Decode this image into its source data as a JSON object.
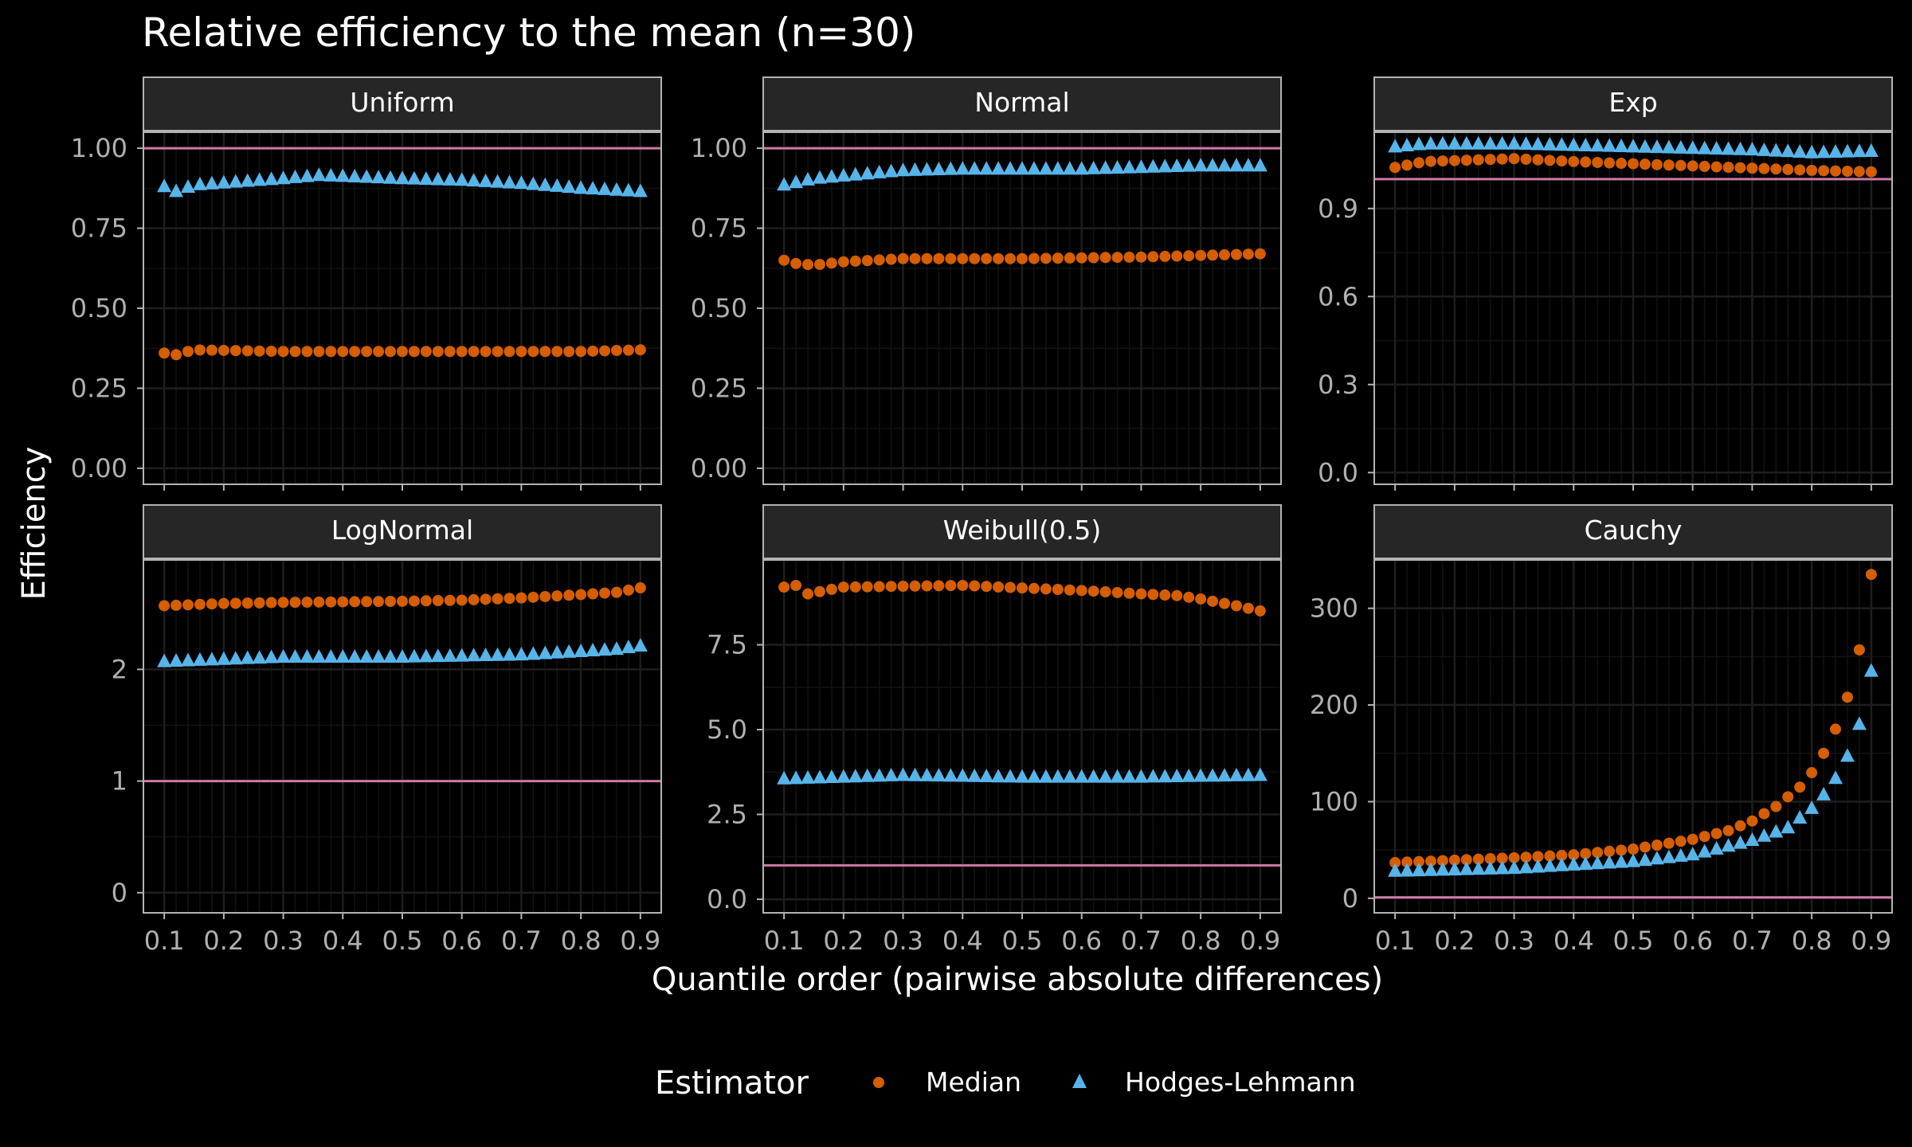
{
  "title": "Relative efficiency to the mean (n=30)",
  "xlabel": "Quantile order (pairwise absolute differences)",
  "ylabel": "Efficiency",
  "legend": {
    "title": "Estimator",
    "placement": "bottom",
    "items": [
      {
        "label": "Median",
        "shape": "circle",
        "color": "#D55E00"
      },
      {
        "label": "Hodges-Lehmann",
        "shape": "triangle",
        "color": "#56B4E9"
      }
    ]
  },
  "colors": {
    "background": "#000000",
    "panel_background": "#000000",
    "strip_background": "#262626",
    "grid": "#1e1e1e",
    "reference_line": "#CC79A7",
    "text": "#ffffff",
    "tick_text": "#b0b0b0"
  },
  "chart_data": {
    "type": "scatter",
    "facets": [
      {
        "name": "Uniform",
        "ylim": [
          -0.05,
          1.05
        ],
        "yticks": [
          0.0,
          0.25,
          0.5,
          0.75,
          1.0
        ],
        "yticklabels": [
          "0.00",
          "0.25",
          "0.50",
          "0.75",
          "1.00"
        ],
        "series": [
          {
            "name": "Median",
            "anchors": [
              [
                0.1,
                0.36
              ],
              [
                0.12,
                0.355
              ],
              [
                0.15,
                0.37
              ],
              [
                0.3,
                0.365
              ],
              [
                0.5,
                0.365
              ],
              [
                0.7,
                0.365
              ],
              [
                0.8,
                0.365
              ],
              [
                0.9,
                0.37
              ]
            ]
          },
          {
            "name": "Hodges-Lehmann",
            "anchors": [
              [
                0.1,
                0.88
              ],
              [
                0.12,
                0.865
              ],
              [
                0.15,
                0.885
              ],
              [
                0.3,
                0.905
              ],
              [
                0.36,
                0.915
              ],
              [
                0.5,
                0.905
              ],
              [
                0.6,
                0.9
              ],
              [
                0.7,
                0.89
              ],
              [
                0.8,
                0.875
              ],
              [
                0.9,
                0.865
              ]
            ]
          }
        ]
      },
      {
        "name": "Normal",
        "ylim": [
          -0.05,
          1.05
        ],
        "yticks": [
          0.0,
          0.25,
          0.5,
          0.75,
          1.0
        ],
        "yticklabels": [
          "0.00",
          "0.25",
          "0.50",
          "0.75",
          "1.00"
        ],
        "series": [
          {
            "name": "Median",
            "anchors": [
              [
                0.1,
                0.65
              ],
              [
                0.12,
                0.64
              ],
              [
                0.15,
                0.635
              ],
              [
                0.2,
                0.645
              ],
              [
                0.3,
                0.655
              ],
              [
                0.5,
                0.655
              ],
              [
                0.7,
                0.66
              ],
              [
                0.8,
                0.665
              ],
              [
                0.9,
                0.67
              ]
            ]
          },
          {
            "name": "Hodges-Lehmann",
            "anchors": [
              [
                0.1,
                0.885
              ],
              [
                0.15,
                0.905
              ],
              [
                0.3,
                0.93
              ],
              [
                0.4,
                0.935
              ],
              [
                0.6,
                0.935
              ],
              [
                0.8,
                0.945
              ],
              [
                0.9,
                0.945
              ]
            ]
          }
        ]
      },
      {
        "name": "Exp",
        "ylim": [
          -0.04,
          1.16
        ],
        "yticks": [
          0.0,
          0.3,
          0.6,
          0.9
        ],
        "yticklabels": [
          "0.0",
          "0.3",
          "0.6",
          "0.9"
        ],
        "series": [
          {
            "name": "Median",
            "anchors": [
              [
                0.1,
                1.04
              ],
              [
                0.15,
                1.06
              ],
              [
                0.3,
                1.07
              ],
              [
                0.4,
                1.06
              ],
              [
                0.6,
                1.045
              ],
              [
                0.8,
                1.03
              ],
              [
                0.9,
                1.025
              ]
            ]
          },
          {
            "name": "Hodges-Lehmann",
            "anchors": [
              [
                0.1,
                1.11
              ],
              [
                0.15,
                1.12
              ],
              [
                0.3,
                1.12
              ],
              [
                0.5,
                1.11
              ],
              [
                0.7,
                1.1
              ],
              [
                0.8,
                1.09
              ],
              [
                0.9,
                1.095
              ]
            ]
          }
        ]
      },
      {
        "name": "LogNormal",
        "ylim": [
          -0.18,
          2.98
        ],
        "yticks": [
          0,
          1,
          2
        ],
        "yticklabels": [
          "0",
          "1",
          "2"
        ],
        "series": [
          {
            "name": "Median",
            "anchors": [
              [
                0.1,
                2.57
              ],
              [
                0.2,
                2.59
              ],
              [
                0.3,
                2.6
              ],
              [
                0.5,
                2.61
              ],
              [
                0.6,
                2.62
              ],
              [
                0.7,
                2.64
              ],
              [
                0.8,
                2.67
              ],
              [
                0.86,
                2.69
              ],
              [
                0.9,
                2.73
              ]
            ]
          },
          {
            "name": "Hodges-Lehmann",
            "anchors": [
              [
                0.1,
                2.07
              ],
              [
                0.2,
                2.09
              ],
              [
                0.3,
                2.11
              ],
              [
                0.5,
                2.11
              ],
              [
                0.6,
                2.12
              ],
              [
                0.7,
                2.13
              ],
              [
                0.8,
                2.16
              ],
              [
                0.86,
                2.18
              ],
              [
                0.9,
                2.21
              ]
            ]
          }
        ]
      },
      {
        "name": "Weibull(0.5)",
        "ylim": [
          -0.4,
          10.0
        ],
        "yticks": [
          0.0,
          2.5,
          5.0,
          7.5
        ],
        "yticklabels": [
          "0.0",
          "2.5",
          "5.0",
          "7.5"
        ],
        "series": [
          {
            "name": "Median",
            "anchors": [
              [
                0.1,
                9.2
              ],
              [
                0.12,
                9.25
              ],
              [
                0.14,
                9.0
              ],
              [
                0.2,
                9.2
              ],
              [
                0.4,
                9.25
              ],
              [
                0.6,
                9.1
              ],
              [
                0.7,
                9.0
              ],
              [
                0.76,
                8.95
              ],
              [
                0.8,
                8.85
              ],
              [
                0.86,
                8.65
              ],
              [
                0.9,
                8.5
              ]
            ]
          },
          {
            "name": "Hodges-Lehmann",
            "anchors": [
              [
                0.1,
                3.55
              ],
              [
                0.3,
                3.65
              ],
              [
                0.5,
                3.6
              ],
              [
                0.7,
                3.6
              ],
              [
                0.9,
                3.65
              ]
            ]
          }
        ]
      },
      {
        "name": "Cauchy",
        "ylim": [
          -15,
          350
        ],
        "yticks": [
          0,
          100,
          200,
          300
        ],
        "yticklabels": [
          "0",
          "100",
          "200",
          "300"
        ],
        "series": [
          {
            "name": "Median",
            "anchors": [
              [
                0.1,
                37
              ],
              [
                0.3,
                42
              ],
              [
                0.4,
                45
              ],
              [
                0.5,
                51
              ],
              [
                0.6,
                61
              ],
              [
                0.66,
                70
              ],
              [
                0.7,
                80
              ],
              [
                0.74,
                95
              ],
              [
                0.78,
                115
              ],
              [
                0.8,
                130
              ],
              [
                0.82,
                150
              ],
              [
                0.84,
                175
              ],
              [
                0.86,
                208
              ],
              [
                0.88,
                257
              ],
              [
                0.9,
                335
              ]
            ]
          },
          {
            "name": "Hodges-Lehmann",
            "anchors": [
              [
                0.1,
                28
              ],
              [
                0.3,
                31
              ],
              [
                0.5,
                38
              ],
              [
                0.6,
                45
              ],
              [
                0.7,
                60
              ],
              [
                0.76,
                73
              ],
              [
                0.8,
                93
              ],
              [
                0.82,
                107
              ],
              [
                0.84,
                124
              ],
              [
                0.86,
                147
              ],
              [
                0.88,
                180
              ],
              [
                0.9,
                235
              ]
            ]
          }
        ]
      }
    ],
    "x": {
      "from": 0.1,
      "to": 0.9,
      "step": 0.02
    },
    "xlim": [
      0.065,
      0.935
    ],
    "xticks": [
      0.1,
      0.2,
      0.3,
      0.4,
      0.5,
      0.6,
      0.7,
      0.8,
      0.9
    ],
    "xticklabels": [
      "0.1",
      "0.2",
      "0.3",
      "0.4",
      "0.5",
      "0.6",
      "0.7",
      "0.8",
      "0.9"
    ],
    "reference_line": {
      "y": 1
    },
    "grid": true
  }
}
